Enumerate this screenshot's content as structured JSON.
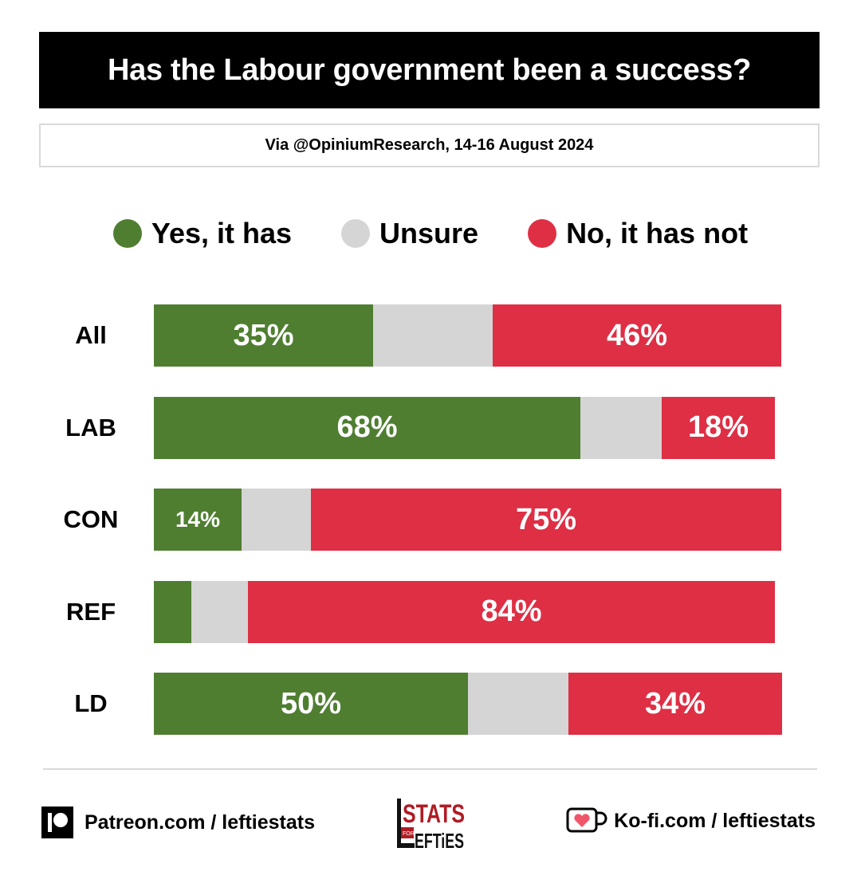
{
  "title": "Has the Labour government been a success?",
  "subtitle": "Via @OpiniumResearch, 14-16 August 2024",
  "legend": [
    {
      "label": "Yes, it has",
      "color": "#4f7e31"
    },
    {
      "label": "Unsure",
      "color": "#d5d5d5"
    },
    {
      "label": "No, it has not",
      "color": "#de2f45"
    }
  ],
  "rows": [
    {
      "label": "All",
      "yes": 35,
      "unsure": 19,
      "no": 46,
      "yes_label": "35%",
      "no_label": "46%"
    },
    {
      "label": "LAB",
      "yes": 68,
      "unsure": 13,
      "no": 18,
      "yes_label": "68%",
      "no_label": "18%"
    },
    {
      "label": "CON",
      "yes": 14,
      "unsure": 11,
      "no": 75,
      "yes_label": "14%",
      "no_label": "75%"
    },
    {
      "label": "REF",
      "yes": 6,
      "unsure": 9,
      "no": 84,
      "yes_label": "",
      "no_label": "84%"
    },
    {
      "label": "LD",
      "yes": 50,
      "unsure": 16,
      "no": 34,
      "yes_label": "50%",
      "no_label": "34%"
    }
  ],
  "footer": {
    "patreon": "Patreon.com / leftiestats",
    "kofi": "Ko-fi.com / leftiestats",
    "logo_top": "STATS",
    "logo_small": "FOR",
    "logo_bottom": "EFTiES"
  },
  "chart_data": {
    "type": "bar",
    "orientation": "horizontal",
    "stacked": true,
    "title": "Has the Labour government been a success?",
    "subtitle": "Via @OpiniumResearch, 14-16 August 2024",
    "categories": [
      "All",
      "LAB",
      "CON",
      "REF",
      "LD"
    ],
    "series": [
      {
        "name": "Yes, it has",
        "color": "#4f7e31",
        "values": [
          35,
          68,
          14,
          6,
          50
        ]
      },
      {
        "name": "Unsure",
        "color": "#d5d5d5",
        "values": [
          19,
          13,
          11,
          9,
          16
        ]
      },
      {
        "name": "No, it has not",
        "color": "#de2f45",
        "values": [
          46,
          18,
          75,
          84,
          34
        ]
      }
    ],
    "data_labels": {
      "Yes, it has": [
        "35%",
        "68%",
        "14%",
        "",
        "50%"
      ],
      "No, it has not": [
        "46%",
        "18%",
        "75%",
        "84%",
        "34%"
      ]
    },
    "xlabel": "",
    "ylabel": "",
    "xlim": [
      0,
      100
    ],
    "grid": false,
    "legend_position": "top"
  }
}
